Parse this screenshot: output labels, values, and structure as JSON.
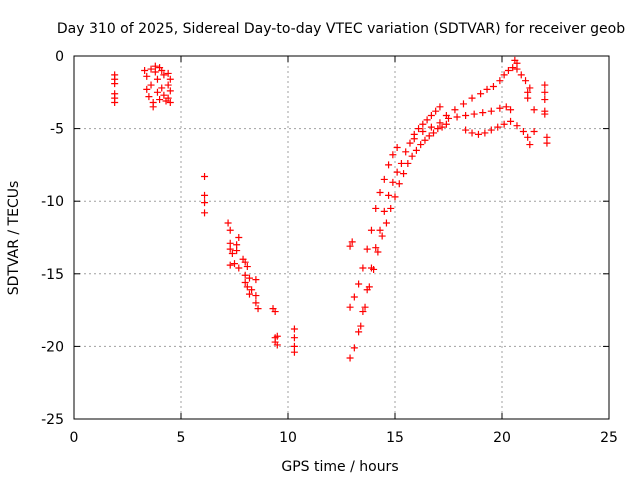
{
  "chart_data": {
    "type": "scatter",
    "title": "Day 310 of 2025, Sidereal Day-to-day VTEC variation (SDTVAR) for receiver geob",
    "xlabel": "GPS time / hours",
    "ylabel": "SDTVAR / TECUs",
    "xlim": [
      0,
      25
    ],
    "ylim": [
      -25,
      0
    ],
    "xticks": [
      0,
      5,
      10,
      15,
      20,
      25
    ],
    "yticks": [
      0,
      -5,
      -10,
      -15,
      -20,
      -25
    ],
    "grid": true,
    "marker": "+",
    "series": [
      {
        "name": "SDTVAR",
        "color": "#ff0000",
        "points": [
          [
            1.9,
            -1.3
          ],
          [
            1.9,
            -1.6
          ],
          [
            1.9,
            -1.9
          ],
          [
            1.9,
            -2.6
          ],
          [
            1.9,
            -2.9
          ],
          [
            1.9,
            -3.2
          ],
          [
            3.3,
            -1.0
          ],
          [
            3.4,
            -1.4
          ],
          [
            3.4,
            -2.3
          ],
          [
            3.5,
            -2.8
          ],
          [
            3.6,
            -0.9
          ],
          [
            3.6,
            -2.0
          ],
          [
            3.7,
            -3.2
          ],
          [
            3.7,
            -3.5
          ],
          [
            3.8,
            -0.7
          ],
          [
            3.8,
            -1.1
          ],
          [
            3.9,
            -1.6
          ],
          [
            3.9,
            -2.5
          ],
          [
            4.0,
            -0.8
          ],
          [
            4.0,
            -3.0
          ],
          [
            4.1,
            -1.0
          ],
          [
            4.1,
            -2.2
          ],
          [
            4.2,
            -1.3
          ],
          [
            4.2,
            -2.7
          ],
          [
            4.3,
            -3.1
          ],
          [
            4.4,
            -1.2
          ],
          [
            4.4,
            -2.0
          ],
          [
            4.4,
            -2.9
          ],
          [
            4.5,
            -1.6
          ],
          [
            4.5,
            -2.4
          ],
          [
            4.5,
            -3.2
          ],
          [
            6.1,
            -8.3
          ],
          [
            6.1,
            -9.6
          ],
          [
            6.1,
            -10.1
          ],
          [
            6.1,
            -10.8
          ],
          [
            7.2,
            -11.5
          ],
          [
            7.3,
            -12.0
          ],
          [
            7.3,
            -12.9
          ],
          [
            7.3,
            -13.3
          ],
          [
            7.3,
            -14.4
          ],
          [
            7.4,
            -13.6
          ],
          [
            7.5,
            -14.3
          ],
          [
            7.6,
            -13.0
          ],
          [
            7.6,
            -13.4
          ],
          [
            7.7,
            -14.6
          ],
          [
            7.7,
            -12.5
          ],
          [
            7.9,
            -14.0
          ],
          [
            8.0,
            -14.2
          ],
          [
            8.0,
            -15.1
          ],
          [
            8.0,
            -15.6
          ],
          [
            8.1,
            -14.5
          ],
          [
            8.1,
            -15.9
          ],
          [
            8.2,
            -16.4
          ],
          [
            8.2,
            -15.3
          ],
          [
            8.3,
            -16.1
          ],
          [
            8.5,
            -15.4
          ],
          [
            8.5,
            -16.5
          ],
          [
            8.5,
            -17.0
          ],
          [
            8.6,
            -17.4
          ],
          [
            9.3,
            -17.4
          ],
          [
            9.4,
            -17.6
          ],
          [
            9.4,
            -19.4
          ],
          [
            9.4,
            -19.7
          ],
          [
            9.5,
            -19.3
          ],
          [
            9.5,
            -19.9
          ],
          [
            10.3,
            -18.8
          ],
          [
            10.3,
            -19.4
          ],
          [
            10.3,
            -20.0
          ],
          [
            10.3,
            -20.4
          ],
          [
            12.9,
            -13.1
          ],
          [
            13.0,
            -12.8
          ],
          [
            12.9,
            -17.3
          ],
          [
            13.1,
            -16.6
          ],
          [
            13.3,
            -15.7
          ],
          [
            13.5,
            -14.6
          ],
          [
            13.7,
            -13.3
          ],
          [
            13.9,
            -12.0
          ],
          [
            14.1,
            -10.5
          ],
          [
            14.3,
            -9.4
          ],
          [
            14.5,
            -8.5
          ],
          [
            14.7,
            -7.5
          ],
          [
            14.9,
            -6.8
          ],
          [
            15.1,
            -6.3
          ],
          [
            12.9,
            -20.8
          ],
          [
            13.1,
            -20.1
          ],
          [
            13.3,
            -19.0
          ],
          [
            13.5,
            -17.6
          ],
          [
            13.7,
            -16.1
          ],
          [
            13.9,
            -14.6
          ],
          [
            14.1,
            -13.2
          ],
          [
            14.3,
            -12.0
          ],
          [
            14.5,
            -10.7
          ],
          [
            14.7,
            -9.6
          ],
          [
            14.9,
            -8.7
          ],
          [
            15.1,
            -8.0
          ],
          [
            15.3,
            -7.4
          ],
          [
            15.5,
            -6.6
          ],
          [
            15.7,
            -6.0
          ],
          [
            15.9,
            -5.4
          ],
          [
            16.1,
            -5.0
          ],
          [
            16.3,
            -4.7
          ],
          [
            16.5,
            -4.4
          ],
          [
            16.7,
            -4.1
          ],
          [
            16.9,
            -3.8
          ],
          [
            17.1,
            -3.5
          ],
          [
            13.4,
            -18.6
          ],
          [
            13.6,
            -17.3
          ],
          [
            13.8,
            -15.9
          ],
          [
            14.0,
            -14.7
          ],
          [
            14.2,
            -13.5
          ],
          [
            14.4,
            -12.4
          ],
          [
            14.6,
            -11.5
          ],
          [
            14.8,
            -10.5
          ],
          [
            15.0,
            -9.7
          ],
          [
            15.2,
            -8.8
          ],
          [
            15.4,
            -8.1
          ],
          [
            15.6,
            -7.4
          ],
          [
            15.8,
            -6.9
          ],
          [
            16.0,
            -6.5
          ],
          [
            16.2,
            -6.1
          ],
          [
            16.4,
            -5.8
          ],
          [
            16.6,
            -5.5
          ],
          [
            16.8,
            -5.3
          ],
          [
            17.0,
            -5.0
          ],
          [
            17.2,
            -4.9
          ],
          [
            17.4,
            -4.7
          ],
          [
            15.9,
            -5.7
          ],
          [
            16.3,
            -5.2
          ],
          [
            16.7,
            -4.9
          ],
          [
            17.1,
            -4.6
          ],
          [
            17.5,
            -4.3
          ],
          [
            17.9,
            -4.2
          ],
          [
            18.3,
            -4.1
          ],
          [
            18.7,
            -4.0
          ],
          [
            19.1,
            -3.9
          ],
          [
            19.5,
            -3.8
          ],
          [
            19.9,
            -3.6
          ],
          [
            20.2,
            -3.5
          ],
          [
            20.4,
            -3.7
          ],
          [
            17.4,
            -4.1
          ],
          [
            17.8,
            -3.7
          ],
          [
            18.2,
            -3.3
          ],
          [
            18.6,
            -2.9
          ],
          [
            19.0,
            -2.6
          ],
          [
            19.3,
            -2.3
          ],
          [
            19.6,
            -2.1
          ],
          [
            19.9,
            -1.7
          ],
          [
            20.1,
            -1.3
          ],
          [
            20.3,
            -1.0
          ],
          [
            20.5,
            -0.8
          ],
          [
            20.7,
            -0.9
          ],
          [
            20.9,
            -1.3
          ],
          [
            21.1,
            -1.7
          ],
          [
            21.3,
            -2.2
          ],
          [
            18.3,
            -5.1
          ],
          [
            18.6,
            -5.3
          ],
          [
            18.9,
            -5.4
          ],
          [
            19.2,
            -5.3
          ],
          [
            19.5,
            -5.1
          ],
          [
            19.8,
            -4.9
          ],
          [
            20.1,
            -4.7
          ],
          [
            20.4,
            -4.5
          ],
          [
            20.7,
            -4.8
          ],
          [
            21.0,
            -5.2
          ],
          [
            21.2,
            -5.6
          ],
          [
            21.3,
            -6.1
          ],
          [
            20.6,
            -0.3
          ],
          [
            20.7,
            -0.5
          ],
          [
            21.2,
            -2.5
          ],
          [
            21.2,
            -2.9
          ],
          [
            21.5,
            -3.7
          ],
          [
            21.5,
            -5.2
          ],
          [
            22.0,
            -2.0
          ],
          [
            22.0,
            -2.5
          ],
          [
            22.0,
            -3.0
          ],
          [
            22.0,
            -3.8
          ],
          [
            22.0,
            -4.0
          ],
          [
            22.1,
            -5.6
          ],
          [
            22.1,
            -6.0
          ]
        ]
      }
    ]
  }
}
